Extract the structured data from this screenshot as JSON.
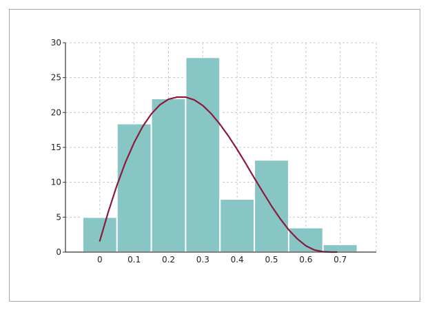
{
  "chart_data": {
    "type": "bar",
    "title": "",
    "xlabel": "",
    "ylabel": "",
    "x_ticks": [
      "0",
      "0.1",
      "0.2",
      "0.3",
      "0.4",
      "0.5",
      "0.6",
      "0.7"
    ],
    "x_tick_values": [
      0,
      0.1,
      0.2,
      0.3,
      0.4,
      0.5,
      0.6,
      0.7
    ],
    "y_ticks": [
      "0",
      "5",
      "10",
      "15",
      "20",
      "25",
      "30"
    ],
    "y_tick_values": [
      0,
      5,
      10,
      15,
      20,
      25,
      30
    ],
    "xlim": [
      -0.1,
      0.805
    ],
    "ylim": [
      0,
      30
    ],
    "grid": true,
    "bins": [
      {
        "x0": -0.05,
        "x1": 0.05,
        "value": 5
      },
      {
        "x0": 0.05,
        "x1": 0.15,
        "value": 18.4
      },
      {
        "x0": 0.15,
        "x1": 0.25,
        "value": 22
      },
      {
        "x0": 0.25,
        "x1": 0.35,
        "value": 27.9
      },
      {
        "x0": 0.35,
        "x1": 0.45,
        "value": 7.6
      },
      {
        "x0": 0.45,
        "x1": 0.55,
        "value": 13.2
      },
      {
        "x0": 0.55,
        "x1": 0.65,
        "value": 3.5
      },
      {
        "x0": 0.65,
        "x1": 0.75,
        "value": 1.1
      }
    ],
    "curve": {
      "x": [
        0,
        0.025,
        0.05,
        0.075,
        0.1,
        0.125,
        0.15,
        0.175,
        0.2,
        0.225,
        0.25,
        0.275,
        0.3,
        0.325,
        0.35,
        0.375,
        0.4,
        0.425,
        0.45,
        0.475,
        0.5,
        0.525,
        0.55,
        0.575,
        0.6,
        0.625,
        0.65,
        0.675,
        0.69
      ],
      "y": [
        1.6,
        5.8,
        9.6,
        12.9,
        15.7,
        18.0,
        19.8,
        21.1,
        21.9,
        22.2,
        22.2,
        21.8,
        21.0,
        19.8,
        18.3,
        16.6,
        14.7,
        12.7,
        10.6,
        8.6,
        6.6,
        4.8,
        3.2,
        1.9,
        0.9,
        0.3,
        0.05,
        0.0,
        0.0
      ]
    },
    "colors": {
      "bar_fill": "#88c5c5",
      "bar_edge": "#ffffff",
      "curve": "#8b1a3a",
      "grid": "#c8c8c8",
      "axis": "#333333"
    }
  }
}
